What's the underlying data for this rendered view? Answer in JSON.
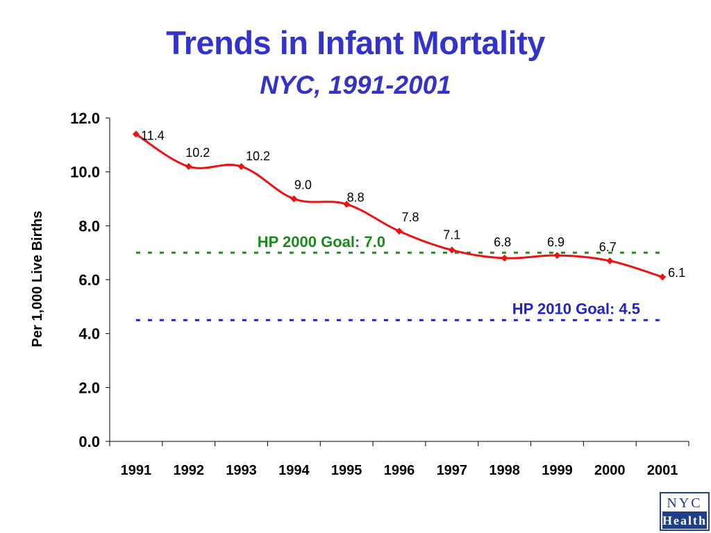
{
  "colors": {
    "title": "#3333cc",
    "series": "#ee1111",
    "goal_2000": "#1a8a1a",
    "goal_2010": "#2222cc",
    "axis": "#000000"
  },
  "logo": {
    "line1": "NYC",
    "line2": "Health"
  },
  "chart_data": {
    "type": "line",
    "title": "Trends in Infant Mortality",
    "subtitle": "NYC, 1991-2001",
    "xlabel": "",
    "ylabel": "Per 1,000 Live Births",
    "x": [
      "1991",
      "1992",
      "1993",
      "1994",
      "1995",
      "1996",
      "1997",
      "1998",
      "1999",
      "2000",
      "2001"
    ],
    "yticks": [
      "0.0",
      "2.0",
      "4.0",
      "6.0",
      "8.0",
      "10.0",
      "12.0"
    ],
    "ylim": [
      0,
      12
    ],
    "grid": false,
    "legend": "none",
    "series": [
      {
        "values": [
          11.4,
          10.2,
          10.2,
          9.0,
          8.8,
          7.8,
          7.1,
          6.8,
          6.9,
          6.7,
          6.1
        ],
        "labels": [
          "11.4",
          "10.2",
          "10.2",
          "9.0",
          "8.8",
          "7.8",
          "7.1",
          "6.8",
          "6.9",
          "6.7",
          "6.1"
        ],
        "marker": "diamond",
        "smooth": true
      }
    ],
    "reference_lines": [
      {
        "value": 7.0,
        "label": "HP 2000 Goal: 7.0",
        "style": "dashed"
      },
      {
        "value": 4.5,
        "label": "HP 2010 Goal: 4.5",
        "style": "dashed"
      }
    ]
  }
}
